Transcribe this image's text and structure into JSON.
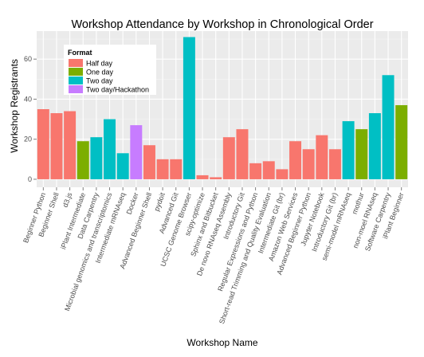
{
  "chart_data": {
    "type": "bar",
    "title": "Workshop Attendance by Workshop in Chronological Order",
    "xlabel": "Workshop Name",
    "ylabel": "Workshop Registrants",
    "ylim": [
      -4,
      74
    ],
    "yticks": [
      0,
      20,
      40,
      60
    ],
    "grid": true,
    "legend": {
      "title": "Format",
      "placement": "top-left",
      "entries": [
        {
          "label": "Half day",
          "color": "#F8766D"
        },
        {
          "label": "One day",
          "color": "#7CAE00"
        },
        {
          "label": "Two day",
          "color": "#00BFC4"
        },
        {
          "label": "Two day/Hackathon",
          "color": "#C77CFF"
        }
      ]
    },
    "categories": [
      "Beginner Python",
      "Beginner Shell",
      "d3.js",
      "iPlant Intermediate",
      "Data Carpentry",
      "Microbial genomics and transcriptomics",
      "Intermediate mRNAseq",
      "Docker",
      "Advanced Beginner Shell",
      "pydoit",
      "Advanced Git",
      "UCSC Genome Browser",
      "scipy-optimize",
      "Sphinx and Bitbucket",
      "De novo RNAseq Assembly",
      "Introductory Git",
      "Regular Expressions and Python",
      "Short-read Trimming and Quality Evaluation",
      "Intermediate Git (br)",
      "Amazon Web Services",
      "Advanced Beginner Python",
      "Jupyter Notebook",
      "Introductory Git (br)",
      "semi-model mRNAseq",
      "mothur",
      "non-moel RNAseq",
      "Software Carpentry",
      "iPlant Beginner"
    ],
    "values": [
      35,
      33,
      34,
      19,
      21,
      30,
      13,
      27,
      17,
      10,
      10,
      71,
      2,
      1,
      21,
      25,
      8,
      9,
      5,
      19,
      15,
      22,
      15,
      29,
      25,
      33,
      52,
      37
    ],
    "formats": [
      "Half day",
      "Half day",
      "Half day",
      "One day",
      "Two day",
      "Two day",
      "Two day",
      "Two day/Hackathon",
      "Half day",
      "Half day",
      "Half day",
      "Two day",
      "Half day",
      "Half day",
      "Half day",
      "Half day",
      "Half day",
      "Half day",
      "Half day",
      "Half day",
      "Half day",
      "Half day",
      "Half day",
      "Two day",
      "One day",
      "Two day",
      "Two day",
      "One day"
    ]
  }
}
